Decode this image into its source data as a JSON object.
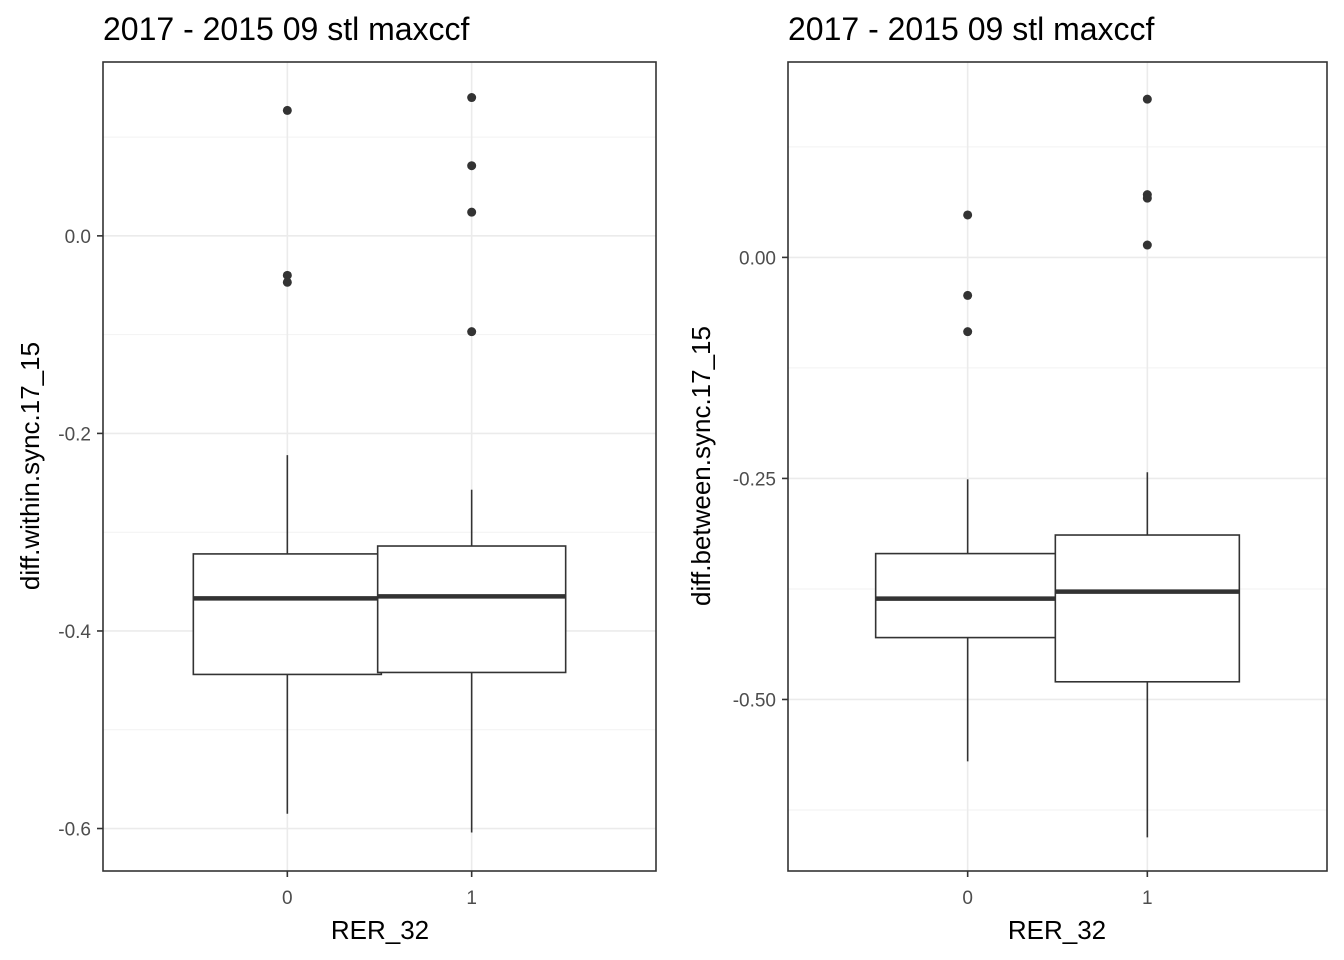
{
  "chart_data": [
    {
      "type": "boxplot",
      "title": "2017 - 2015 09 stl maxccf",
      "xlabel": "RER_32",
      "ylabel": "diff.within.sync.17_15",
      "categories": [
        "0",
        "1"
      ],
      "ylim": [
        -0.643,
        0.176
      ],
      "yticks": [
        0.0,
        -0.2,
        -0.4,
        -0.6
      ],
      "ytick_labels": [
        "0.0",
        "-0.2",
        "-0.4",
        "-0.6"
      ],
      "grid": true,
      "boxes": [
        {
          "category": "0",
          "lower_whisker": -0.585,
          "q1": -0.444,
          "median": -0.367,
          "q3": -0.322,
          "upper_whisker": -0.222,
          "outliers": [
            0.127,
            -0.04,
            -0.047
          ]
        },
        {
          "category": "1",
          "lower_whisker": -0.604,
          "q1": -0.442,
          "median": -0.365,
          "q3": -0.314,
          "upper_whisker": -0.257,
          "outliers": [
            0.14,
            0.071,
            0.024,
            -0.097
          ]
        }
      ]
    },
    {
      "type": "boxplot",
      "title": "2017 - 2015 09 stl maxccf",
      "xlabel": "RER_32",
      "ylabel": "diff.between.sync.17_15",
      "categories": [
        "0",
        "1"
      ],
      "ylim": [
        -0.694,
        0.221
      ],
      "yticks": [
        0.0,
        -0.25,
        -0.5
      ],
      "ytick_labels": [
        "0.00",
        "-0.25",
        "-0.50"
      ],
      "grid": true,
      "boxes": [
        {
          "category": "0",
          "lower_whisker": -0.57,
          "q1": -0.43,
          "median": -0.386,
          "q3": -0.335,
          "upper_whisker": -0.251,
          "outliers": [
            0.048,
            -0.043,
            -0.084
          ]
        },
        {
          "category": "1",
          "lower_whisker": -0.656,
          "q1": -0.48,
          "median": -0.378,
          "q3": -0.314,
          "upper_whisker": -0.243,
          "outliers": [
            0.179,
            0.071,
            0.067,
            0.014
          ]
        }
      ]
    }
  ]
}
